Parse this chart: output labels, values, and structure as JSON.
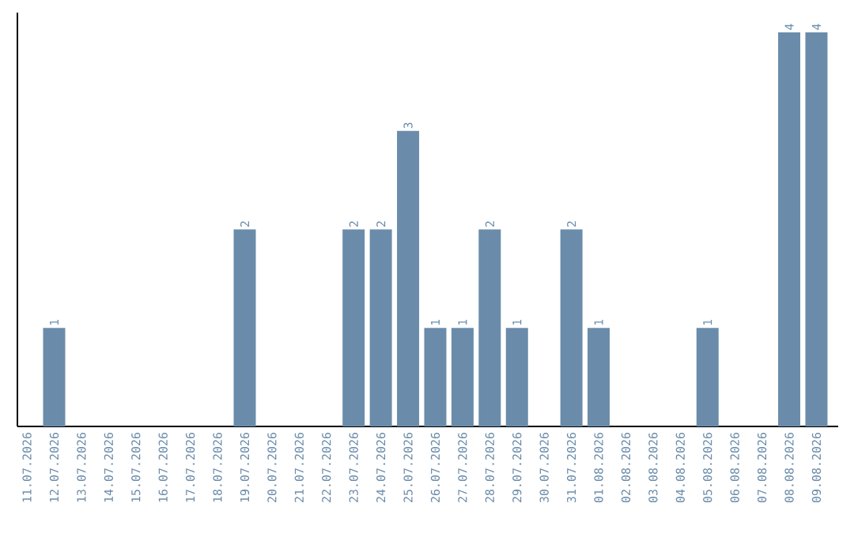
{
  "chart_data": {
    "type": "bar",
    "color": "#6a8caa",
    "categories": [
      "11.07.2026",
      "12.07.2026",
      "13.07.2026",
      "14.07.2026",
      "15.07.2026",
      "16.07.2026",
      "17.07.2026",
      "18.07.2026",
      "19.07.2026",
      "20.07.2026",
      "21.07.2026",
      "22.07.2026",
      "23.07.2026",
      "24.07.2026",
      "25.07.2026",
      "26.07.2026",
      "27.07.2026",
      "28.07.2026",
      "29.07.2026",
      "30.07.2026",
      "31.07.2026",
      "01.08.2026",
      "02.08.2026",
      "03.08.2026",
      "04.08.2026",
      "05.08.2026",
      "06.08.2026",
      "07.08.2026",
      "08.08.2026",
      "09.08.2026"
    ],
    "values": [
      0,
      1,
      0,
      0,
      0,
      0,
      0,
      0,
      2,
      0,
      0,
      0,
      2,
      2,
      3,
      1,
      1,
      2,
      1,
      0,
      2,
      1,
      0,
      0,
      0,
      1,
      0,
      0,
      4,
      4
    ],
    "value_labels": [
      null,
      "1",
      null,
      null,
      null,
      null,
      null,
      null,
      "2",
      null,
      null,
      null,
      "2",
      "2",
      "3",
      "1",
      "1",
      "2",
      "1",
      null,
      "2",
      "1",
      null,
      null,
      null,
      "1",
      null,
      null,
      "4",
      "4"
    ]
  }
}
